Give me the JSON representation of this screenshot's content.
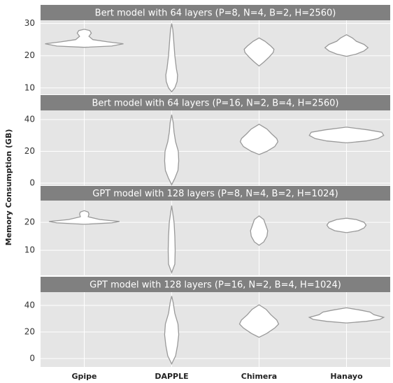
{
  "y_label": "Memory Consumption (GB)",
  "categories": [
    "Gpipe",
    "DAPPLE",
    "Chimera",
    "Hanayo"
  ],
  "chart_data": [
    {
      "type": "violin",
      "title": "Bert model with 64 layers (P=8, N=4, B=2, H=2560)",
      "color": "#ffffff",
      "grid": true,
      "ylim": [
        8,
        31
      ],
      "yticks": [
        10,
        20,
        30
      ],
      "violins": [
        {
          "y": [
            22.6,
            23,
            23.7,
            24.3,
            25,
            26,
            27,
            27.8,
            28.2
          ],
          "density": [
            0,
            0.7,
            1,
            0.6,
            0.22,
            0.12,
            0.18,
            0.14,
            0
          ]
        },
        {
          "y": [
            8.8,
            10,
            12,
            14,
            16,
            20,
            25,
            28,
            30
          ],
          "density": [
            0,
            0.08,
            0.14,
            0.15,
            0.12,
            0.08,
            0.05,
            0.03,
            0
          ]
        },
        {
          "y": [
            16.8,
            18,
            19.5,
            21,
            22,
            23,
            24.5,
            25.5
          ],
          "density": [
            0,
            0.12,
            0.25,
            0.36,
            0.38,
            0.3,
            0.15,
            0
          ]
        },
        {
          "y": [
            19.8,
            20.5,
            21.5,
            22.5,
            23.5,
            24.5,
            25.5,
            26.5
          ],
          "density": [
            0,
            0.25,
            0.45,
            0.55,
            0.45,
            0.25,
            0.15,
            0
          ]
        }
      ]
    },
    {
      "type": "violin",
      "title": "Bert model with 64 layers (P=16, N=2, B=4, H=2560)",
      "color": "#ffffff",
      "grid": true,
      "ylim": [
        -1.3,
        45.7
      ],
      "yticks": [
        0,
        20,
        40
      ],
      "violins": [
        {
          "y": [],
          "density": []
        },
        {
          "y": [
            -1,
            3,
            8,
            14,
            20,
            26,
            32,
            38,
            43
          ],
          "density": [
            0,
            0.08,
            0.16,
            0.18,
            0.17,
            0.1,
            0.06,
            0.04,
            0
          ]
        },
        {
          "y": [
            18,
            20,
            23,
            26,
            28,
            31,
            34,
            37
          ],
          "density": [
            0,
            0.2,
            0.4,
            0.48,
            0.45,
            0.32,
            0.2,
            0
          ]
        },
        {
          "y": [
            25.3,
            26.5,
            28,
            30,
            32,
            33.5,
            35.2
          ],
          "density": [
            0,
            0.5,
            0.8,
            0.95,
            0.9,
            0.55,
            0
          ]
        }
      ]
    },
    {
      "type": "violin",
      "title": "GPT model with 128 layers (P=8, N=4, B=2, H=1024)",
      "color": "#ffffff",
      "grid": true,
      "ylim": [
        1,
        27.8
      ],
      "yticks": [
        10,
        20
      ],
      "violins": [
        {
          "y": [
            19.3,
            19.8,
            20.3,
            21,
            22,
            23,
            23.7,
            24.2
          ],
          "density": [
            0,
            0.7,
            0.9,
            0.4,
            0.1,
            0.12,
            0.1,
            0
          ]
        },
        {
          "y": [
            2,
            5,
            10,
            15,
            20,
            26
          ],
          "density": [
            0,
            0.08,
            0.09,
            0.08,
            0.06,
            0
          ]
        },
        {
          "y": [
            11.8,
            13,
            15,
            17,
            19,
            21,
            22.3
          ],
          "density": [
            0,
            0.12,
            0.2,
            0.22,
            0.17,
            0.12,
            0
          ]
        },
        {
          "y": [
            16.3,
            17,
            18,
            19,
            20,
            21,
            21.5
          ],
          "density": [
            0,
            0.3,
            0.45,
            0.5,
            0.45,
            0.25,
            0
          ]
        }
      ]
    },
    {
      "type": "violin",
      "title": "GPT model with 128 layers (P=16, N=2, B=4, H=1024)",
      "color": "#ffffff",
      "grid": true,
      "ylim": [
        -6.3,
        50
      ],
      "yticks": [
        0,
        20,
        40
      ],
      "violins": [
        {
          "y": [],
          "density": []
        },
        {
          "y": [
            -4,
            2,
            10,
            18,
            26,
            34,
            42,
            47
          ],
          "density": [
            0,
            0.1,
            0.15,
            0.18,
            0.16,
            0.08,
            0.04,
            0
          ]
        },
        {
          "y": [
            16,
            19,
            23,
            26,
            29,
            33,
            37,
            40.5
          ],
          "density": [
            0,
            0.2,
            0.4,
            0.5,
            0.45,
            0.3,
            0.18,
            0
          ]
        },
        {
          "y": [
            26.8,
            28,
            29.5,
            31,
            33,
            35,
            36.5,
            38.2
          ],
          "density": [
            0,
            0.5,
            0.85,
            0.95,
            0.7,
            0.6,
            0.35,
            0
          ]
        }
      ]
    }
  ]
}
